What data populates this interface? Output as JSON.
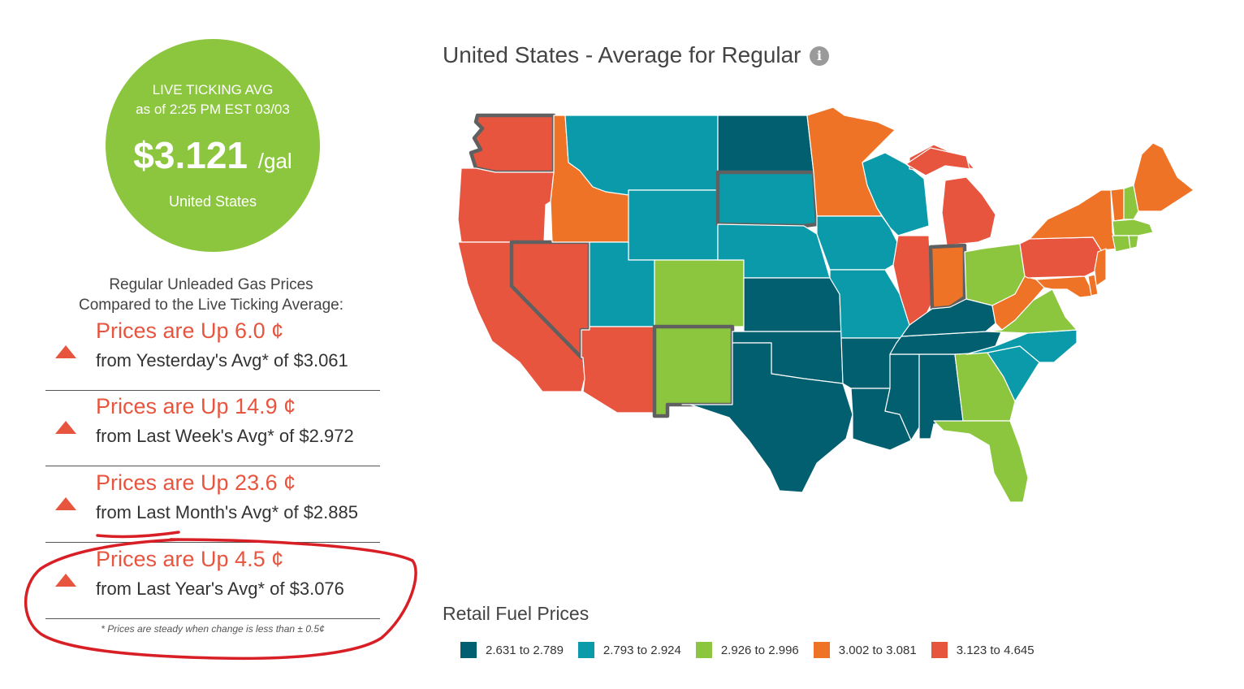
{
  "ticker": {
    "line1": "LIVE TICKING AVG",
    "line2": "as of   2:25 PM EST 03/03",
    "price": "$3.121",
    "unit": "/gal",
    "location": "United States"
  },
  "comparison": {
    "title_line1": "Regular Unleaded Gas Prices",
    "title_line2": "Compared to the Live Ticking Average:",
    "rows": [
      {
        "change": "Prices are Up 6.0 ¢",
        "from": "from Yesterday's Avg* of $3.061"
      },
      {
        "change": "Prices are Up 14.9 ¢",
        "from": "from Last Week's Avg* of $2.972"
      },
      {
        "change": "Prices are Up 23.6 ¢",
        "from": "from Last Month's Avg* of $2.885"
      },
      {
        "change": "Prices are Up 4.5 ¢",
        "from": "from Last Year's Avg* of $3.076"
      }
    ],
    "note": "* Prices are steady when change is less than ± 0.5¢"
  },
  "map": {
    "title": "United States - Average for Regular",
    "info_icon": "info-icon",
    "legend_title": "Retail Fuel Prices",
    "legend": [
      {
        "label": "2.631 to 2.789",
        "color": "#025f70"
      },
      {
        "label": "2.793 to 2.924",
        "color": "#0b9aaa"
      },
      {
        "label": "2.926 to 2.996",
        "color": "#8cc63f"
      },
      {
        "label": "3.002 to 3.081",
        "color": "#ef7326"
      },
      {
        "label": "3.123 to 4.645",
        "color": "#e8553f"
      }
    ]
  },
  "annotation": {
    "color": "#d81f26"
  }
}
